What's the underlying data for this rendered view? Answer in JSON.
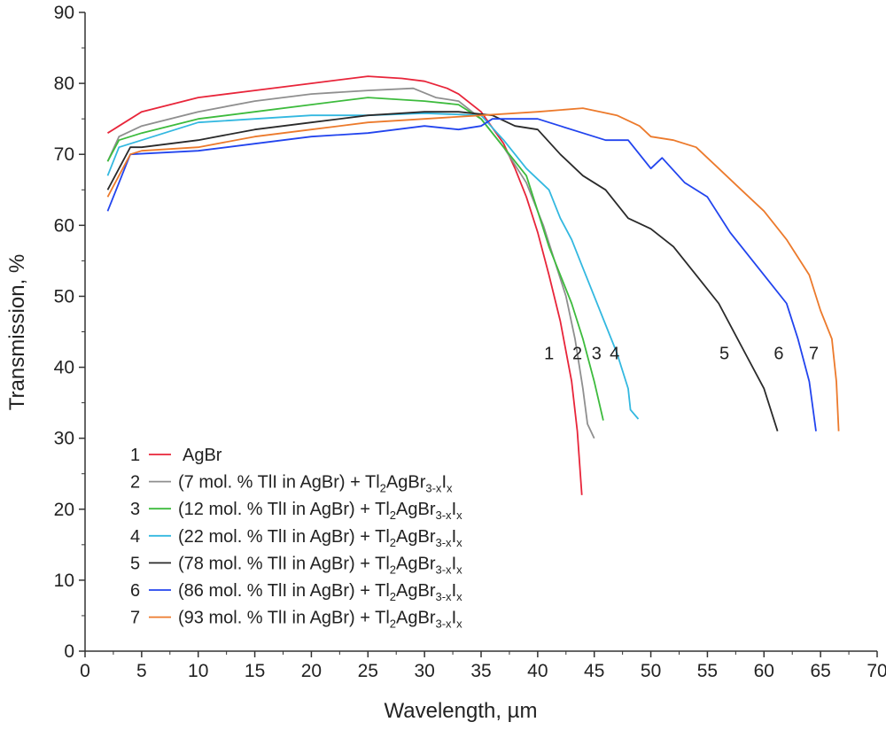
{
  "chart_data": {
    "type": "line",
    "title": "",
    "xlabel": "Wavelength, µm",
    "ylabel": "Transmission, %",
    "xlim": [
      0,
      70
    ],
    "ylim": [
      0,
      90
    ],
    "xticks": [
      0,
      5,
      10,
      15,
      20,
      25,
      30,
      35,
      40,
      45,
      50,
      55,
      60,
      65,
      70
    ],
    "yticks": [
      0,
      10,
      20,
      30,
      40,
      50,
      60,
      70,
      80,
      90
    ],
    "grid": false,
    "legend_position": "bottom-left",
    "series": [
      {
        "id": "1",
        "name": "AgBr",
        "color": "#e8253a",
        "label_pos": [
          41.0,
          42
        ],
        "points": [
          [
            2,
            73
          ],
          [
            3,
            74
          ],
          [
            5,
            76
          ],
          [
            10,
            78
          ],
          [
            15,
            79
          ],
          [
            20,
            80
          ],
          [
            25,
            81
          ],
          [
            28,
            80.7
          ],
          [
            30,
            80.3
          ],
          [
            32,
            79.3
          ],
          [
            33,
            78.5
          ],
          [
            35,
            76
          ],
          [
            37,
            71.5
          ],
          [
            38,
            68
          ],
          [
            39,
            64
          ],
          [
            40,
            59
          ],
          [
            41,
            53
          ],
          [
            42,
            46.5
          ],
          [
            43,
            38
          ],
          [
            43.5,
            31
          ],
          [
            43.9,
            22
          ]
        ]
      },
      {
        "id": "2",
        "name": "(7 mol. % TlI in AgBr) + Tl2AgBr3-xIx",
        "color": "#8f8f8f",
        "label_pos": [
          43.5,
          42
        ],
        "points": [
          [
            2,
            69
          ],
          [
            3,
            72.5
          ],
          [
            5,
            74
          ],
          [
            10,
            76
          ],
          [
            15,
            77.5
          ],
          [
            20,
            78.5
          ],
          [
            25,
            79
          ],
          [
            29,
            79.3
          ],
          [
            31,
            78
          ],
          [
            33,
            77.5
          ],
          [
            35,
            75
          ],
          [
            37,
            71
          ],
          [
            39,
            66
          ],
          [
            40.5,
            60
          ],
          [
            41.5,
            55
          ],
          [
            42.5,
            50
          ],
          [
            43.3,
            44
          ],
          [
            44,
            37
          ],
          [
            44.4,
            32
          ],
          [
            45,
            30
          ]
        ]
      },
      {
        "id": "3",
        "name": "(12 mol. % TlI in AgBr) + Tl2AgBr3-xIx",
        "color": "#3dbb3d",
        "label_pos": [
          45.2,
          42
        ],
        "points": [
          [
            2,
            69
          ],
          [
            3,
            72
          ],
          [
            5,
            73
          ],
          [
            10,
            75
          ],
          [
            15,
            76
          ],
          [
            20,
            77
          ],
          [
            25,
            78
          ],
          [
            30,
            77.5
          ],
          [
            33,
            77
          ],
          [
            35,
            75
          ],
          [
            37,
            71
          ],
          [
            39,
            67
          ],
          [
            40,
            62
          ],
          [
            41,
            57
          ],
          [
            42,
            53
          ],
          [
            43,
            49
          ],
          [
            44,
            44
          ],
          [
            45,
            38
          ],
          [
            45.8,
            32.5
          ]
        ]
      },
      {
        "id": "4",
        "name": "(22 mol. % TlI in AgBr) + Tl2AgBr3-xIx",
        "color": "#33b8e0",
        "label_pos": [
          46.8,
          42
        ],
        "points": [
          [
            2,
            67
          ],
          [
            3,
            71
          ],
          [
            5,
            72
          ],
          [
            10,
            74.5
          ],
          [
            15,
            75
          ],
          [
            20,
            75.5
          ],
          [
            25,
            75.5
          ],
          [
            30,
            75.8
          ],
          [
            35,
            75.5
          ],
          [
            37,
            72
          ],
          [
            39,
            68
          ],
          [
            41,
            65
          ],
          [
            42,
            61
          ],
          [
            43,
            58
          ],
          [
            44,
            54
          ],
          [
            45,
            50
          ],
          [
            46,
            46
          ],
          [
            47,
            42
          ],
          [
            48,
            37
          ],
          [
            48.2,
            34
          ],
          [
            48.9,
            32.7
          ]
        ]
      },
      {
        "id": "5",
        "name": "(78 mol. % TlI in AgBr) + Tl2AgBr3-xIx",
        "color": "#2a2a2a",
        "label_pos": [
          56.5,
          42
        ],
        "points": [
          [
            2,
            65
          ],
          [
            4,
            71
          ],
          [
            5,
            71
          ],
          [
            10,
            72
          ],
          [
            15,
            73.5
          ],
          [
            20,
            74.5
          ],
          [
            25,
            75.5
          ],
          [
            30,
            76
          ],
          [
            33,
            76
          ],
          [
            36,
            75.5
          ],
          [
            38,
            74
          ],
          [
            40,
            73.5
          ],
          [
            42,
            70
          ],
          [
            44,
            67
          ],
          [
            46,
            65
          ],
          [
            48,
            61
          ],
          [
            50,
            59.5
          ],
          [
            52,
            57
          ],
          [
            54,
            53
          ],
          [
            56,
            49
          ],
          [
            58,
            43
          ],
          [
            60,
            37
          ],
          [
            61.2,
            31
          ]
        ]
      },
      {
        "id": "6",
        "name": "(86 mol. % TlI in AgBr) + Tl2AgBr3-xIx",
        "color": "#2244ee",
        "label_pos": [
          61.3,
          42
        ],
        "points": [
          [
            2,
            62
          ],
          [
            4,
            70
          ],
          [
            10,
            70.5
          ],
          [
            15,
            71.5
          ],
          [
            20,
            72.5
          ],
          [
            25,
            73
          ],
          [
            30,
            74
          ],
          [
            33,
            73.5
          ],
          [
            35,
            74
          ],
          [
            36,
            75
          ],
          [
            40,
            75
          ],
          [
            42,
            74
          ],
          [
            44,
            73
          ],
          [
            46,
            72
          ],
          [
            48,
            72
          ],
          [
            50,
            68
          ],
          [
            51,
            69.5
          ],
          [
            53,
            66
          ],
          [
            55,
            64
          ],
          [
            57,
            59
          ],
          [
            60,
            53
          ],
          [
            62,
            49
          ],
          [
            63,
            44
          ],
          [
            64,
            38
          ],
          [
            64.6,
            31
          ]
        ]
      },
      {
        "id": "7",
        "name": "(93 mol. % TlI in AgBr) + Tl2AgBr3-xIx",
        "color": "#ec7a2c",
        "label_pos": [
          64.4,
          42
        ],
        "points": [
          [
            2,
            64
          ],
          [
            4,
            70
          ],
          [
            5,
            70.5
          ],
          [
            10,
            71
          ],
          [
            15,
            72.5
          ],
          [
            20,
            73.5
          ],
          [
            25,
            74.5
          ],
          [
            30,
            75
          ],
          [
            35,
            75.5
          ],
          [
            40,
            76
          ],
          [
            44,
            76.5
          ],
          [
            47,
            75.5
          ],
          [
            49,
            74
          ],
          [
            50,
            72.5
          ],
          [
            52,
            72
          ],
          [
            54,
            71
          ],
          [
            56,
            68
          ],
          [
            58,
            65
          ],
          [
            60,
            62
          ],
          [
            62,
            58
          ],
          [
            64,
            53
          ],
          [
            65,
            48
          ],
          [
            66,
            44
          ],
          [
            66.4,
            38
          ],
          [
            66.6,
            31
          ]
        ]
      }
    ],
    "legend": [
      {
        "num": "1",
        "text": "AgBr",
        "sub1": "",
        "mid": "",
        "sub2": "",
        "i": "",
        "sub3": ""
      },
      {
        "num": "2",
        "text": "(7 mol. % TlI in AgBr) + Tl",
        "sub1": "2",
        "mid": "AgBr",
        "sub2": "3-x",
        "i": "I",
        "sub3": "x"
      },
      {
        "num": "3",
        "text": "(12 mol. % TlI in AgBr) + Tl",
        "sub1": "2",
        "mid": "AgBr",
        "sub2": "3-x",
        "i": "I",
        "sub3": "x"
      },
      {
        "num": "4",
        "text": "(22 mol. % TlI in AgBr) + Tl",
        "sub1": "2",
        "mid": "AgBr",
        "sub2": "3-x",
        "i": "I",
        "sub3": "x"
      },
      {
        "num": "5",
        "text": "(78 mol. % TlI in AgBr) + Tl",
        "sub1": "2",
        "mid": "AgBr",
        "sub2": "3-x",
        "i": "I",
        "sub3": "x"
      },
      {
        "num": "6",
        "text": "(86 mol. % TlI in AgBr) + Tl",
        "sub1": "2",
        "mid": "AgBr",
        "sub2": "3-x",
        "i": "I",
        "sub3": "x"
      },
      {
        "num": "7",
        "text": "(93 mol. % TlI in AgBr) + Tl",
        "sub1": "2",
        "mid": "AgBr",
        "sub2": "3-x",
        "i": "I",
        "sub3": "x"
      }
    ]
  }
}
